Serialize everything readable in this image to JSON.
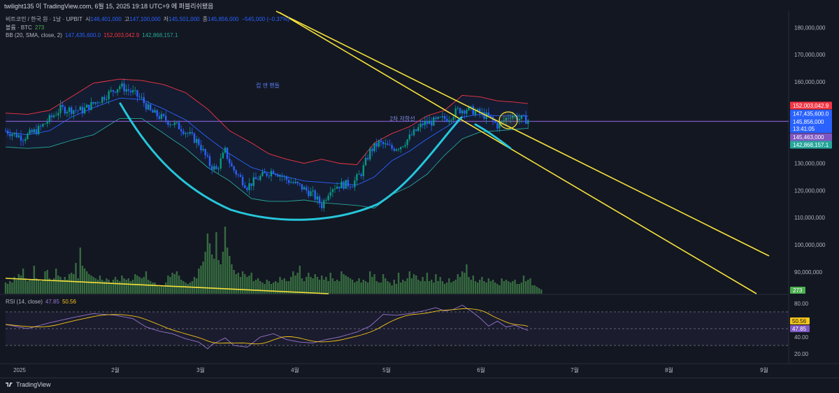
{
  "header": {
    "author_line": "twilight135 이 TradingView.com, 6월 15, 2025 19:18 UTC+9 에 퍼블리쉬됐음"
  },
  "legend": {
    "symbol": "비트코인 / 한국 원 · 1날 · UPBIT",
    "open_label": "시",
    "open": "146,401,000",
    "high_label": "고",
    "high": "147,100,000",
    "low_label": "저",
    "low": "145,501,000",
    "close_label": "종",
    "close": "145,856,000",
    "change": "−545,000 (−0.37%)",
    "volume_label": "볼륨 · BTC",
    "volume": "273",
    "bb_label": "BB (20, SMA, close, 2)",
    "bb_basis": "147,435,600.0",
    "bb_upper": "152,003,042.9",
    "bb_lower": "142,868,157.1",
    "rsi_label": "RSI (14, close)",
    "rsi_value": "47.85",
    "rsi_ma": "50.56"
  },
  "annotations": {
    "cup_handle": "컵 앤 핸들",
    "level_2nd": "2차 저항선"
  },
  "price_axis": {
    "ticks": [
      "180,000,000",
      "170,000,000",
      "160,000,000",
      "130,000,000",
      "120,000,000",
      "110,000,000",
      "100,000,000",
      "90,000,000"
    ],
    "badges": {
      "bb_upper": "152,003,042.9",
      "bb_basis": "147,435,600.0",
      "last": "145,856,000",
      "countdown": "13:41:05",
      "level": "145,463,000",
      "bb_lower": "142,868,157.1",
      "volume": "273"
    }
  },
  "rsi_axis": {
    "ticks": [
      "80.00",
      "40.00",
      "20.00"
    ],
    "badges": {
      "ma": "50.56",
      "rsi": "47.85"
    }
  },
  "time_axis": [
    "2025",
    "2월",
    "3월",
    "4월",
    "5월",
    "6월",
    "7월",
    "8월",
    "9월"
  ],
  "footer": {
    "brand": "TradingView"
  },
  "colors": {
    "background": "#131722",
    "up": "#089981",
    "down": "#2962ff",
    "bb_upper": "#f23645",
    "bb_basis": "#2962ff",
    "bb_lower": "#26a69a",
    "trendline": "#f5e13b",
    "cup": "#26c6da",
    "rsi": "#9575cd",
    "rsi_ma": "#f5c518",
    "level": "#7e57c2",
    "volume": "#3d7a45"
  },
  "chart_data": {
    "type": "candlestick",
    "symbol": "비트코인 / 한국 원",
    "interval": "1날",
    "ylim": [
      82000000,
      186000000
    ],
    "x_months": [
      "2025",
      "2월",
      "3월",
      "4월",
      "5월",
      "6월",
      "7월",
      "8월",
      "9월"
    ],
    "price_path": [
      [
        0,
        142.0
      ],
      [
        8,
        139.5
      ],
      [
        15,
        142.5
      ],
      [
        25,
        150.0
      ],
      [
        35,
        149.5
      ],
      [
        43,
        153.5
      ],
      [
        52,
        158.5
      ],
      [
        58,
        156.0
      ],
      [
        62,
        153.5
      ],
      [
        66,
        149.0
      ],
      [
        74,
        145.5
      ],
      [
        80,
        143.0
      ],
      [
        88,
        137.5
      ],
      [
        93,
        129.5
      ],
      [
        96,
        127.5
      ],
      [
        100,
        134.5
      ],
      [
        103,
        128.5
      ],
      [
        110,
        121.5
      ],
      [
        115,
        124.5
      ],
      [
        122,
        127.5
      ],
      [
        128,
        124.0
      ],
      [
        134,
        121.5
      ],
      [
        140,
        118.5
      ],
      [
        144,
        114.5
      ],
      [
        148,
        121.0
      ],
      [
        152,
        122.0
      ],
      [
        158,
        122.5
      ],
      [
        162,
        126.5
      ],
      [
        166,
        134.5
      ],
      [
        170,
        137.5
      ],
      [
        176,
        135.5
      ],
      [
        180,
        136.5
      ],
      [
        184,
        139.5
      ],
      [
        190,
        144.5
      ],
      [
        196,
        145.5
      ],
      [
        202,
        147.0
      ],
      [
        206,
        149.5
      ],
      [
        210,
        150.0
      ],
      [
        214,
        149.0
      ],
      [
        220,
        147.0
      ],
      [
        224,
        144.0
      ],
      [
        226,
        145.0
      ],
      [
        230,
        148.0
      ],
      [
        234,
        146.5
      ],
      [
        238,
        145.9
      ]
    ],
    "bollinger_approx": {
      "upper": [
        [
          0,
          148.5
        ],
        [
          10,
          148.0
        ],
        [
          20,
          149.5
        ],
        [
          30,
          154.5
        ],
        [
          40,
          159.5
        ],
        [
          52,
          161.0
        ],
        [
          62,
          160.5
        ],
        [
          72,
          159.0
        ],
        [
          82,
          156.0
        ],
        [
          92,
          150.0
        ],
        [
          102,
          142.0
        ],
        [
          112,
          137.5
        ],
        [
          120,
          133.5
        ],
        [
          128,
          131.5
        ],
        [
          136,
          130.0
        ],
        [
          144,
          131.5
        ],
        [
          152,
          130.0
        ],
        [
          160,
          129.5
        ],
        [
          168,
          137.5
        ],
        [
          176,
          141.0
        ],
        [
          184,
          143.5
        ],
        [
          192,
          147.5
        ],
        [
          200,
          149.5
        ],
        [
          208,
          155.0
        ],
        [
          216,
          154.5
        ],
        [
          224,
          153.0
        ],
        [
          232,
          152.5
        ],
        [
          238,
          152.0
        ]
      ],
      "basis": [
        [
          0,
          141.5
        ],
        [
          10,
          140.5
        ],
        [
          20,
          142.0
        ],
        [
          30,
          147.0
        ],
        [
          40,
          150.5
        ],
        [
          52,
          154.0
        ],
        [
          62,
          153.5
        ],
        [
          72,
          150.0
        ],
        [
          82,
          146.0
        ],
        [
          92,
          139.5
        ],
        [
          102,
          133.5
        ],
        [
          112,
          128.5
        ],
        [
          120,
          126.5
        ],
        [
          128,
          125.0
        ],
        [
          136,
          123.5
        ],
        [
          144,
          123.0
        ],
        [
          152,
          122.5
        ],
        [
          160,
          122.0
        ],
        [
          168,
          125.0
        ],
        [
          176,
          131.0
        ],
        [
          184,
          134.5
        ],
        [
          192,
          139.0
        ],
        [
          200,
          143.0
        ],
        [
          208,
          147.0
        ],
        [
          216,
          148.0
        ],
        [
          224,
          147.5
        ],
        [
          232,
          147.4
        ],
        [
          238,
          147.4
        ]
      ],
      "lower": [
        [
          0,
          136.0
        ],
        [
          10,
          135.5
        ],
        [
          20,
          136.0
        ],
        [
          30,
          138.5
        ],
        [
          40,
          140.5
        ],
        [
          52,
          146.5
        ],
        [
          62,
          146.5
        ],
        [
          72,
          141.0
        ],
        [
          82,
          135.5
        ],
        [
          92,
          128.5
        ],
        [
          102,
          123.5
        ],
        [
          112,
          117.0
        ],
        [
          120,
          116.0
        ],
        [
          128,
          116.0
        ],
        [
          136,
          116.5
        ],
        [
          144,
          115.5
        ],
        [
          152,
          115.0
        ],
        [
          160,
          114.5
        ],
        [
          168,
          113.5
        ],
        [
          176,
          118.5
        ],
        [
          184,
          121.5
        ],
        [
          192,
          126.0
        ],
        [
          200,
          133.0
        ],
        [
          208,
          139.0
        ],
        [
          216,
          141.5
        ],
        [
          224,
          142.0
        ],
        [
          232,
          142.5
        ],
        [
          238,
          142.9
        ]
      ]
    },
    "rsi_approx": [
      [
        0,
        55
      ],
      [
        10,
        50
      ],
      [
        20,
        57
      ],
      [
        32,
        64
      ],
      [
        40,
        68
      ],
      [
        50,
        66
      ],
      [
        58,
        62
      ],
      [
        64,
        52
      ],
      [
        70,
        47
      ],
      [
        76,
        44
      ],
      [
        82,
        38
      ],
      [
        88,
        34
      ],
      [
        92,
        26
      ],
      [
        94,
        31
      ],
      [
        100,
        39
      ],
      [
        104,
        30
      ],
      [
        110,
        28
      ],
      [
        116,
        40
      ],
      [
        122,
        44
      ],
      [
        128,
        37
      ],
      [
        134,
        34
      ],
      [
        140,
        33
      ],
      [
        146,
        37
      ],
      [
        152,
        40
      ],
      [
        160,
        46
      ],
      [
        166,
        53
      ],
      [
        172,
        67
      ],
      [
        178,
        66
      ],
      [
        184,
        68
      ],
      [
        190,
        71
      ],
      [
        196,
        75
      ],
      [
        200,
        71
      ],
      [
        204,
        73
      ],
      [
        208,
        78
      ],
      [
        212,
        71
      ],
      [
        216,
        63
      ],
      [
        220,
        53
      ],
      [
        224,
        59
      ],
      [
        228,
        52
      ],
      [
        232,
        54
      ],
      [
        238,
        47.85
      ]
    ],
    "rsi_ylim": [
      10,
      90
    ],
    "rsi_levels": [
      70,
      50,
      30
    ],
    "volume_approx": [
      8,
      7,
      9,
      8,
      12,
      10,
      14,
      13,
      18,
      11,
      9,
      10,
      10,
      20,
      11,
      10,
      9,
      10,
      16,
      17,
      11,
      9,
      11,
      18,
      13,
      12,
      10,
      12,
      10,
      14,
      15,
      14,
      22,
      11,
      33,
      20,
      18,
      16,
      14,
      13,
      12,
      11,
      10,
      13,
      10,
      9,
      11,
      10,
      8,
      10,
      12,
      10,
      9,
      13,
      11,
      10,
      11,
      9,
      10,
      14,
      13,
      12,
      11,
      12,
      16,
      10,
      9,
      8,
      8,
      6,
      5,
      6,
      5,
      8,
      13,
      12,
      15,
      14,
      16,
      13,
      10,
      9,
      8,
      7,
      8,
      9,
      12,
      11,
      18,
      20,
      23,
      30,
      43,
      36,
      28,
      25,
      44,
      24,
      21,
      30,
      48,
      33,
      27,
      21,
      17,
      14,
      15,
      12,
      16,
      14,
      12,
      13,
      15,
      9,
      10,
      11,
      9,
      8,
      7,
      10,
      9,
      7,
      8,
      9,
      8,
      12,
      10,
      11,
      9,
      9,
      12,
      16,
      13,
      15,
      20,
      11,
      9,
      12,
      15,
      12,
      11,
      14,
      12,
      10,
      13,
      10,
      12,
      9,
      15,
      11,
      9,
      10,
      9,
      16,
      14,
      13,
      12,
      11,
      10,
      8,
      9,
      11,
      8,
      10,
      9,
      8,
      16,
      12,
      14,
      9,
      8,
      8,
      14,
      11,
      9,
      8,
      6,
      10,
      7,
      15,
      8,
      10,
      9,
      11,
      16,
      11,
      14,
      13,
      10,
      9,
      12,
      9,
      15,
      9,
      10,
      8,
      14,
      9,
      12,
      9,
      7,
      8,
      11,
      8,
      9,
      10,
      14,
      12,
      16,
      15,
      21,
      12,
      10,
      13,
      9,
      8,
      10,
      12,
      9,
      8,
      11,
      9,
      10,
      8,
      7,
      6,
      11,
      9,
      10,
      9,
      8,
      9,
      10,
      7,
      7,
      8,
      13,
      9,
      10,
      11,
      6,
      6,
      5,
      4,
      3
    ],
    "last_close": 145856000
  }
}
